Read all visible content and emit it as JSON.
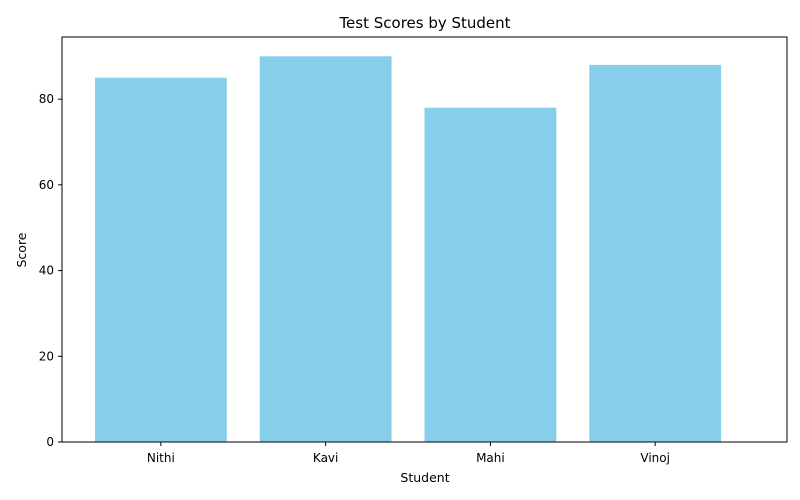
{
  "chart_data": {
    "type": "bar",
    "title": "Test Scores by Student",
    "xlabel": "Student",
    "ylabel": "Score",
    "categories": [
      "Nithi",
      "Kavi",
      "Mahi",
      "Vinoj"
    ],
    "values": [
      85,
      90,
      78,
      88
    ],
    "ylim": [
      0,
      94.5
    ],
    "yticks": [
      0,
      20,
      40,
      60,
      80
    ],
    "bar_color": "#87CEEB",
    "grid": false,
    "legend": false
  }
}
